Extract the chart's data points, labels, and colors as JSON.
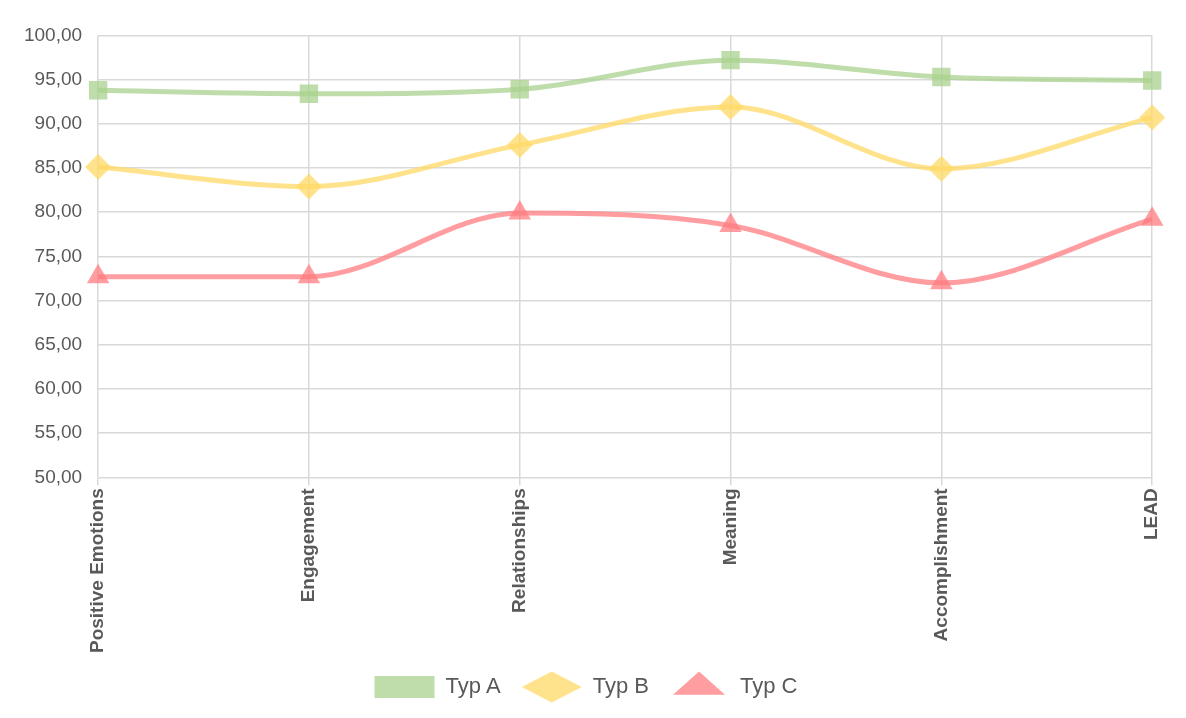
{
  "chart_data": {
    "type": "line",
    "categories": [
      "Positive Emotions",
      "Engagement",
      "Relationships",
      "Meaning",
      "Accomplishment",
      "LEAD"
    ],
    "series": [
      {
        "name": "Typ A",
        "color": "#a9d18e",
        "marker": "square",
        "values": [
          93.8,
          93.4,
          93.9,
          97.2,
          95.3,
          94.9
        ]
      },
      {
        "name": "Typ B",
        "color": "#ffd966",
        "marker": "diamond",
        "values": [
          85.1,
          82.9,
          87.6,
          91.9,
          84.9,
          90.7
        ]
      },
      {
        "name": "Typ C",
        "color": "#ff7c80",
        "marker": "triangle",
        "values": [
          72.7,
          72.7,
          79.9,
          78.5,
          72.0,
          79.2
        ]
      }
    ],
    "ylim": [
      50,
      100
    ],
    "yticks": [
      {
        "value": 50,
        "label": "50,00"
      },
      {
        "value": 55,
        "label": "55,00"
      },
      {
        "value": 60,
        "label": "60,00"
      },
      {
        "value": 65,
        "label": "65,00"
      },
      {
        "value": 70,
        "label": "70,00"
      },
      {
        "value": 75,
        "label": "75,00"
      },
      {
        "value": 80,
        "label": "80,00"
      },
      {
        "value": 85,
        "label": "85,00"
      },
      {
        "value": 90,
        "label": "90,00"
      },
      {
        "value": 95,
        "label": "95,00"
      },
      {
        "value": 100,
        "label": "100,00"
      }
    ],
    "grid": true,
    "legend": "bottom",
    "line_style": "solid"
  }
}
